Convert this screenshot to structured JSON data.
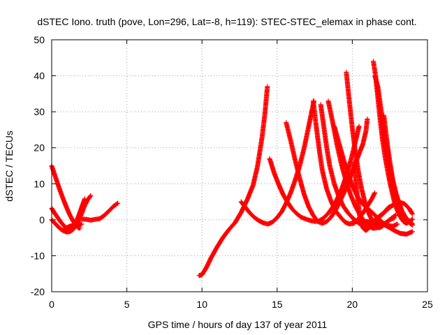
{
  "chart_data": {
    "type": "scatter",
    "title": "dSTEC Iono. truth (pove, Lon=296, Lat=-8, h=119): STEC-STEC_elemax in phase cont.",
    "xlabel": "GPS time / hours of day 137 of year 2011",
    "ylabel": "dSTEC  / TECUs",
    "xlim": [
      0,
      25
    ],
    "ylim": [
      -20,
      50
    ],
    "xticks": [
      "0",
      "5",
      "10",
      "15",
      "20",
      "25"
    ],
    "yticks": [
      "-20",
      "-10",
      "0",
      "10",
      "20",
      "30",
      "40",
      "50"
    ],
    "grid": true,
    "marker": "+",
    "color": "#ff0000",
    "series": [
      {
        "points": [
          [
            0.0,
            15.0
          ],
          [
            0.2,
            12.5
          ],
          [
            0.4,
            10.0
          ],
          [
            0.6,
            7.6
          ],
          [
            0.8,
            5.4
          ],
          [
            1.0,
            3.3
          ],
          [
            1.2,
            1.4
          ],
          [
            1.4,
            -0.2
          ],
          [
            1.6,
            -1.5
          ],
          [
            1.8,
            -2.3
          ],
          [
            1.9,
            -2.3
          ]
        ]
      },
      {
        "points": [
          [
            0.0,
            3.2
          ],
          [
            0.2,
            1.8
          ],
          [
            0.4,
            0.6
          ],
          [
            0.6,
            -0.6
          ],
          [
            0.8,
            -1.6
          ],
          [
            1.0,
            -2.4
          ],
          [
            1.2,
            -2.6
          ],
          [
            1.4,
            -2.0
          ],
          [
            1.6,
            -0.8
          ],
          [
            1.8,
            1.2
          ],
          [
            2.0,
            3.5
          ],
          [
            2.2,
            5.8
          ]
        ]
      },
      {
        "points": [
          [
            0.0,
            0.0
          ],
          [
            0.2,
            -0.9
          ],
          [
            0.4,
            -1.8
          ],
          [
            0.6,
            -2.6
          ],
          [
            0.8,
            -3.1
          ],
          [
            1.0,
            -3.4
          ],
          [
            1.2,
            -3.3
          ],
          [
            1.4,
            -2.8
          ],
          [
            1.6,
            -1.8
          ],
          [
            1.8,
            -0.2
          ],
          [
            2.0,
            1.8
          ],
          [
            2.2,
            4.0
          ],
          [
            2.4,
            5.6
          ],
          [
            2.6,
            6.7
          ]
        ]
      },
      {
        "points": [
          [
            0.8,
            -2.6
          ],
          [
            1.0,
            -2.2
          ],
          [
            1.2,
            -1.8
          ],
          [
            1.4,
            -1.6
          ],
          [
            1.6,
            -1.7
          ],
          [
            1.8,
            -1.5
          ],
          [
            2.0,
            -1.2
          ]
        ]
      },
      {
        "points": [
          [
            2.0,
            0.2
          ],
          [
            2.3,
            0.1
          ],
          [
            2.6,
            -0.1
          ],
          [
            2.9,
            0.1
          ],
          [
            3.2,
            0.3
          ],
          [
            3.5,
            1.2
          ],
          [
            3.8,
            2.4
          ],
          [
            4.1,
            3.7
          ],
          [
            4.4,
            4.6
          ]
        ]
      },
      {
        "points": [
          [
            9.8,
            -15.5
          ],
          [
            10.0,
            -15.3
          ],
          [
            10.3,
            -13.2
          ],
          [
            10.6,
            -10.6
          ],
          [
            11.0,
            -7.6
          ],
          [
            11.4,
            -4.9
          ],
          [
            11.8,
            -2.7
          ],
          [
            12.2,
            -0.8
          ],
          [
            12.6,
            2.0
          ],
          [
            13.0,
            5.5
          ],
          [
            13.4,
            9.6
          ],
          [
            13.7,
            15.0
          ],
          [
            14.0,
            23.0
          ],
          [
            14.2,
            30.0
          ],
          [
            14.35,
            37.0
          ]
        ]
      },
      {
        "points": [
          [
            12.6,
            5.0
          ],
          [
            12.9,
            3.4
          ],
          [
            13.2,
            1.8
          ],
          [
            13.5,
            0.6
          ],
          [
            13.8,
            -0.3
          ],
          [
            14.1,
            -0.9
          ],
          [
            14.4,
            -1.2
          ],
          [
            14.7,
            -0.6
          ],
          [
            15.0,
            0.6
          ],
          [
            15.3,
            2.2
          ],
          [
            15.6,
            4.6
          ],
          [
            15.9,
            7.5
          ],
          [
            16.2,
            11.0
          ],
          [
            16.5,
            15.0
          ],
          [
            16.8,
            20.0
          ],
          [
            17.1,
            26.0
          ],
          [
            17.3,
            30.0
          ],
          [
            17.45,
            33.0
          ]
        ]
      },
      {
        "points": [
          [
            14.5,
            17.0
          ],
          [
            14.8,
            13.0
          ],
          [
            15.1,
            9.8
          ],
          [
            15.4,
            7.0
          ],
          [
            15.7,
            4.8
          ],
          [
            16.0,
            3.0
          ],
          [
            16.3,
            1.7
          ],
          [
            16.6,
            0.7
          ],
          [
            16.9,
            0.2
          ],
          [
            17.2,
            -0.2
          ],
          [
            17.5,
            -0.5
          ],
          [
            17.8,
            -0.3
          ],
          [
            18.1,
            0.5
          ],
          [
            18.4,
            1.8
          ],
          [
            18.7,
            3.5
          ],
          [
            19.0,
            5.8
          ],
          [
            19.3,
            8.6
          ],
          [
            19.6,
            12.2
          ],
          [
            19.9,
            16.5
          ],
          [
            20.2,
            21.5
          ],
          [
            20.45,
            26.0
          ]
        ]
      },
      {
        "points": [
          [
            15.6,
            27.0
          ],
          [
            15.9,
            22.0
          ],
          [
            16.2,
            16.5
          ],
          [
            16.5,
            11.5
          ],
          [
            16.8,
            7.0
          ],
          [
            17.1,
            3.6
          ],
          [
            17.4,
            1.2
          ],
          [
            17.7,
            -0.5
          ],
          [
            18.0,
            -1.0
          ],
          [
            18.3,
            -0.5
          ],
          [
            18.6,
            0.8
          ],
          [
            18.9,
            2.8
          ],
          [
            19.2,
            5.3
          ],
          [
            19.5,
            8.0
          ],
          [
            19.8,
            11.2
          ],
          [
            20.1,
            14.5
          ],
          [
            20.4,
            17.8
          ],
          [
            20.7,
            21.0
          ],
          [
            20.9,
            24.5
          ],
          [
            21.0,
            28.0
          ]
        ]
      },
      {
        "points": [
          [
            17.4,
            33.0
          ],
          [
            17.6,
            26.0
          ],
          [
            17.8,
            19.5
          ],
          [
            18.0,
            13.8
          ],
          [
            18.3,
            8.5
          ],
          [
            18.6,
            5.0
          ],
          [
            18.9,
            2.4
          ],
          [
            19.2,
            0.8
          ],
          [
            19.5,
            -0.6
          ],
          [
            19.8,
            -1.2
          ],
          [
            20.1,
            -1.0
          ],
          [
            20.4,
            0.2
          ],
          [
            20.7,
            1.8
          ],
          [
            21.0,
            3.8
          ],
          [
            21.3,
            5.8
          ],
          [
            21.5,
            7.5
          ]
        ]
      },
      {
        "points": [
          [
            17.9,
            32.0
          ],
          [
            18.1,
            26.0
          ],
          [
            18.3,
            20.0
          ],
          [
            18.5,
            15.0
          ],
          [
            18.8,
            10.0
          ],
          [
            19.1,
            6.5
          ],
          [
            19.4,
            3.8
          ],
          [
            19.7,
            2.0
          ],
          [
            20.0,
            0.6
          ],
          [
            20.3,
            -0.5
          ],
          [
            20.6,
            -1.5
          ],
          [
            20.9,
            -1.8
          ],
          [
            21.2,
            -1.2
          ],
          [
            21.5,
            0.0
          ],
          [
            21.8,
            1.0
          ],
          [
            22.1,
            2.0
          ],
          [
            22.4,
            3.4
          ],
          [
            22.7,
            4.0
          ]
        ]
      },
      {
        "points": [
          [
            18.4,
            33.0
          ],
          [
            18.7,
            27.0
          ],
          [
            19.0,
            20.5
          ],
          [
            19.3,
            15.0
          ],
          [
            19.6,
            10.5
          ],
          [
            19.9,
            6.8
          ],
          [
            20.2,
            3.8
          ],
          [
            20.5,
            1.4
          ],
          [
            20.8,
            -0.5
          ],
          [
            21.1,
            -1.8
          ],
          [
            21.4,
            -2.4
          ],
          [
            21.7,
            -2.2
          ],
          [
            22.0,
            -1.5
          ],
          [
            22.3,
            -0.6
          ],
          [
            22.6,
            0.4
          ],
          [
            22.9,
            1.3
          ]
        ]
      },
      {
        "points": [
          [
            18.8,
            26.0
          ],
          [
            19.1,
            21.5
          ],
          [
            19.4,
            17.0
          ],
          [
            19.7,
            13.0
          ],
          [
            20.0,
            9.5
          ],
          [
            20.3,
            6.8
          ],
          [
            20.6,
            4.8
          ],
          [
            20.9,
            3.5
          ],
          [
            21.2,
            2.5
          ],
          [
            21.5,
            1.3
          ],
          [
            21.8,
            0.0
          ],
          [
            22.1,
            -1.0
          ],
          [
            22.4,
            -1.6
          ],
          [
            22.7,
            -1.8
          ],
          [
            23.0,
            -1.2
          ]
        ]
      },
      {
        "points": [
          [
            19.6,
            41.0
          ],
          [
            19.8,
            33.0
          ],
          [
            20.0,
            25.5
          ],
          [
            20.2,
            19.0
          ],
          [
            20.4,
            13.5
          ],
          [
            20.6,
            9.0
          ],
          [
            20.8,
            5.5
          ],
          [
            21.0,
            2.8
          ],
          [
            21.2,
            0.8
          ],
          [
            21.4,
            -0.8
          ],
          [
            21.6,
            -1.8
          ],
          [
            21.8,
            -2.2
          ],
          [
            22.0,
            -1.8
          ],
          [
            22.2,
            -1.0
          ],
          [
            22.5,
            0.0
          ],
          [
            22.8,
            0.5
          ]
        ]
      },
      {
        "points": [
          [
            20.1,
            16.0
          ],
          [
            20.3,
            8.0
          ],
          [
            20.5,
            0.8
          ],
          [
            20.7,
            -2.2
          ],
          [
            20.9,
            -3.0
          ],
          [
            21.1,
            -2.3
          ],
          [
            21.4,
            -1.0
          ],
          [
            21.7,
            0.3
          ],
          [
            22.0,
            1.5
          ],
          [
            22.3,
            2.7
          ],
          [
            22.6,
            3.8
          ],
          [
            22.9,
            4.4
          ],
          [
            23.2,
            4.8
          ],
          [
            23.5,
            4.4
          ],
          [
            23.8,
            3.0
          ],
          [
            24.0,
            1.6
          ]
        ]
      },
      {
        "points": [
          [
            21.4,
            44.0
          ],
          [
            21.55,
            40.0
          ],
          [
            21.7,
            34.0
          ],
          [
            21.85,
            28.0
          ],
          [
            22.0,
            22.5
          ],
          [
            22.2,
            17.0
          ],
          [
            22.4,
            12.5
          ],
          [
            22.6,
            8.5
          ],
          [
            22.8,
            5.0
          ],
          [
            23.0,
            2.5
          ],
          [
            23.2,
            0.8
          ],
          [
            23.4,
            -0.5
          ],
          [
            23.6,
            -1.0
          ],
          [
            23.8,
            -0.6
          ],
          [
            24.0,
            0.2
          ]
        ]
      },
      {
        "points": [
          [
            21.5,
            40.0
          ],
          [
            21.7,
            37.0
          ],
          [
            21.9,
            31.0
          ],
          [
            22.1,
            25.0
          ],
          [
            22.3,
            19.5
          ],
          [
            22.5,
            14.5
          ],
          [
            22.7,
            10.5
          ],
          [
            22.9,
            7.0
          ],
          [
            23.1,
            4.2
          ],
          [
            23.3,
            2.0
          ],
          [
            23.5,
            0.5
          ],
          [
            23.7,
            -0.4
          ],
          [
            23.9,
            -1.2
          ],
          [
            24.0,
            -1.5
          ]
        ]
      },
      {
        "points": [
          [
            22.1,
            29.0
          ],
          [
            22.3,
            22.0
          ],
          [
            22.5,
            16.0
          ],
          [
            22.7,
            11.0
          ],
          [
            22.9,
            7.5
          ],
          [
            23.1,
            4.8
          ],
          [
            23.3,
            2.5
          ],
          [
            23.5,
            1.0
          ],
          [
            23.7,
            0.0
          ],
          [
            23.9,
            -0.8
          ],
          [
            24.0,
            -1.2
          ]
        ]
      },
      {
        "points": [
          [
            20.0,
            -0.5
          ],
          [
            20.4,
            -0.6
          ],
          [
            20.8,
            -0.4
          ],
          [
            21.2,
            -0.6
          ],
          [
            21.6,
            -0.8
          ],
          [
            22.0,
            -1.2
          ],
          [
            22.4,
            -2.0
          ],
          [
            22.8,
            -3.0
          ],
          [
            23.2,
            -3.8
          ],
          [
            23.6,
            -4.0
          ],
          [
            24.0,
            -3.3
          ]
        ]
      }
    ]
  }
}
